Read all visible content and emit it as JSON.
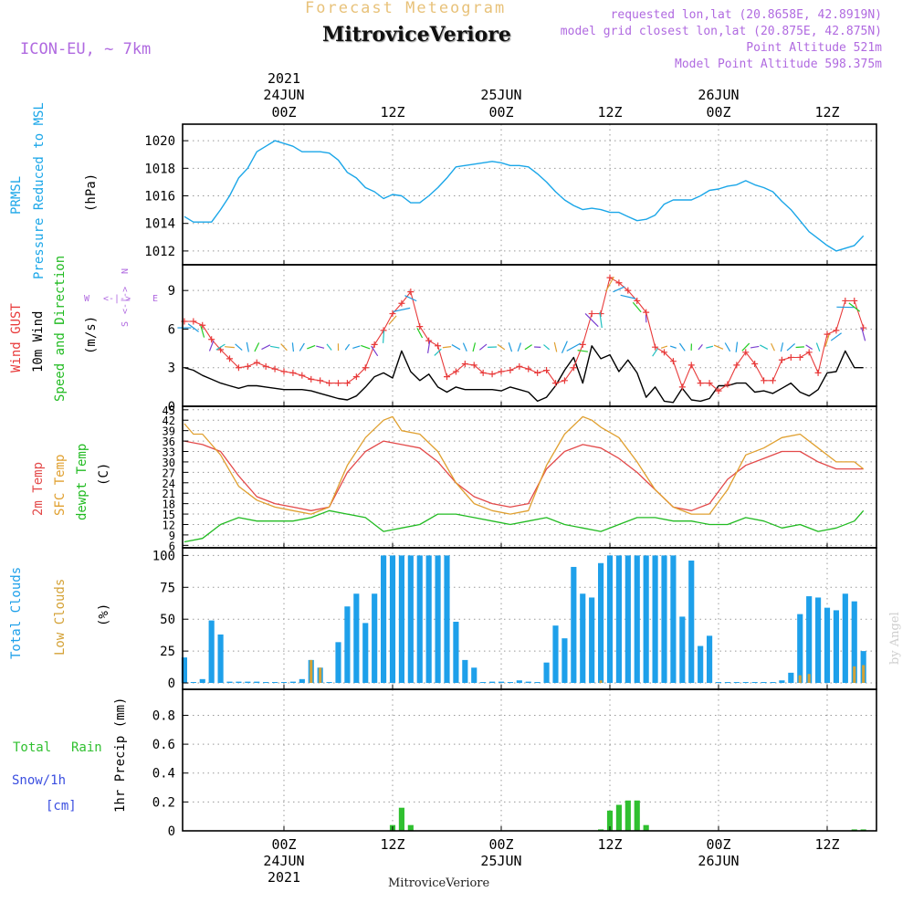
{
  "header": {
    "subtitle": "Forecast Meteogram",
    "station": "MitroviceVeriore",
    "model": "ICON-EU, ~ 7km",
    "requested": "requested lon,lat (20.8658E, 42.8919N)",
    "closest": "model grid closest lon,lat (20.875E, 42.875N)",
    "point_alt": "Point Altitude 521m",
    "model_alt": "Model Point Altitude 598.375m",
    "footer_station": "MitroviceVeriore",
    "watermark": "by Angel"
  },
  "colors": {
    "pressure": "#1aa6e8",
    "gust": "#e83a3a",
    "wind": "#000000",
    "temp2m": "#e34a4a",
    "sfctemp": "#e0a030",
    "dewpt": "#22bb22",
    "total_cloud": "#1ea0ea",
    "low_cloud": "#d4a237",
    "precip": "#30c030",
    "snow_label": "#3a4ee0",
    "purple": "#b06ae0"
  },
  "time_axis": {
    "top_year": "2021",
    "bottom_year": "2021",
    "ticks": [
      {
        "hour": 0,
        "label": "00Z",
        "date": "24JUN"
      },
      {
        "hour": 12,
        "label": "12Z",
        "date": ""
      },
      {
        "hour": 24,
        "label": "00Z",
        "date": "25JUN"
      },
      {
        "hour": 36,
        "label": "12Z",
        "date": ""
      },
      {
        "hour": 48,
        "label": "00Z",
        "date": "26JUN"
      },
      {
        "hour": 60,
        "label": "12Z",
        "date": ""
      }
    ]
  },
  "chart_data": [
    {
      "type": "line",
      "name": "pressure",
      "labels": [
        "PRMSL",
        "Pressure Reduced to MSL",
        "(hPa)"
      ],
      "ylim": [
        1011,
        1021.2
      ],
      "yticks": [
        1012,
        1014,
        1016,
        1018,
        1020
      ],
      "series": [
        {
          "name": "PRMSL",
          "x": [
            -11,
            -10,
            -9,
            -8,
            -7,
            -6,
            -5,
            -4,
            -3,
            -2,
            -1,
            0,
            1,
            2,
            3,
            4,
            5,
            6,
            7,
            8,
            9,
            10,
            11,
            12,
            13,
            14,
            15,
            16,
            17,
            18,
            19,
            20,
            21,
            22,
            23,
            24,
            25,
            26,
            27,
            28,
            29,
            30,
            31,
            32,
            33,
            34,
            35,
            36,
            37,
            38,
            39,
            40,
            41,
            42,
            43,
            44,
            45,
            46,
            47,
            48,
            49,
            50,
            51,
            52,
            53,
            54,
            55,
            56,
            57,
            58,
            59,
            60,
            61,
            62,
            63,
            64
          ],
          "y": [
            1014.5,
            1014.1,
            1014.1,
            1014.1,
            1015.0,
            1016.0,
            1017.3,
            1018.0,
            1019.2,
            1019.6,
            1020.0,
            1019.8,
            1019.6,
            1019.2,
            1019.2,
            1019.2,
            1019.1,
            1018.6,
            1017.7,
            1017.3,
            1016.6,
            1016.3,
            1015.8,
            1016.1,
            1016.0,
            1015.5,
            1015.5,
            1016.0,
            1016.6,
            1017.3,
            1018.1,
            1018.2,
            1018.3,
            1018.4,
            1018.5,
            1018.4,
            1018.2,
            1018.2,
            1018.1,
            1017.6,
            1017.0,
            1016.3,
            1015.7,
            1015.3,
            1015.0,
            1015.1,
            1015.0,
            1014.8,
            1014.8,
            1014.5,
            1014.2,
            1014.3,
            1014.6,
            1015.4,
            1015.7,
            1015.7,
            1015.7,
            1016.0,
            1016.4,
            1016.5,
            1016.7,
            1016.8,
            1017.1,
            1016.8,
            1016.6,
            1016.3,
            1015.6,
            1015.0,
            1014.2,
            1013.4,
            1012.9,
            1012.4,
            1012.0,
            1012.2,
            1012.4,
            1013.1
          ]
        }
      ]
    },
    {
      "type": "line",
      "name": "wind",
      "labels": [
        "Wind GUST",
        "10m Wind",
        "Speed and Direction",
        "(m/s)"
      ],
      "compass": {
        "n": "N",
        "s": "S",
        "w": "W",
        "e": "E",
        "arrows": "<-|->"
      },
      "ylim": [
        0,
        11
      ],
      "yticks": [
        0,
        3,
        6,
        9
      ],
      "gust": {
        "x": [
          -11,
          -10,
          -9,
          -8,
          -7,
          -6,
          -5,
          -4,
          -3,
          -2,
          -1,
          0,
          1,
          2,
          3,
          4,
          5,
          6,
          7,
          8,
          9,
          10,
          11,
          12,
          13,
          14,
          15,
          16,
          17,
          18,
          19,
          20,
          21,
          22,
          23,
          24,
          25,
          26,
          27,
          28,
          29,
          30,
          31,
          32,
          33,
          34,
          35,
          36,
          37,
          38,
          39,
          40,
          41,
          42,
          43,
          44,
          45,
          46,
          47,
          48,
          49,
          50,
          51,
          52,
          53,
          54,
          55,
          56,
          57,
          58,
          59,
          60,
          61,
          62,
          63,
          64
        ],
        "y": [
          6.6,
          6.6,
          6.3,
          5.2,
          4.4,
          3.7,
          3.0,
          3.1,
          3.4,
          3.1,
          2.9,
          2.7,
          2.6,
          2.4,
          2.1,
          2.0,
          1.8,
          1.8,
          1.8,
          2.3,
          3.0,
          4.8,
          5.9,
          7.2,
          8.0,
          8.9,
          6.2,
          5.1,
          4.7,
          2.3,
          2.7,
          3.3,
          3.2,
          2.6,
          2.5,
          2.7,
          2.8,
          3.1,
          2.9,
          2.6,
          2.8,
          1.8,
          2.0,
          3.0,
          4.8,
          7.2,
          7.2,
          10.0,
          9.6,
          9.0,
          8.2,
          7.3,
          4.6,
          4.2,
          3.5,
          1.5,
          3.2,
          1.8,
          1.8,
          1.2,
          1.7,
          3.2,
          4.2,
          3.3,
          2.0,
          2.0,
          3.6,
          3.8,
          3.8,
          4.2,
          2.6,
          5.6,
          5.9,
          8.2,
          8.2,
          6.1
        ]
      },
      "wind": {
        "x": [
          -11,
          -10,
          -9,
          -8,
          -7,
          -6,
          -5,
          -4,
          -3,
          -2,
          -1,
          0,
          1,
          2,
          3,
          4,
          5,
          6,
          7,
          8,
          9,
          10,
          11,
          12,
          13,
          14,
          15,
          16,
          17,
          18,
          19,
          20,
          21,
          22,
          23,
          24,
          25,
          26,
          27,
          28,
          29,
          30,
          31,
          32,
          33,
          34,
          35,
          36,
          37,
          38,
          39,
          40,
          41,
          42,
          43,
          44,
          45,
          46,
          47,
          48,
          49,
          50,
          51,
          52,
          53,
          54,
          55,
          56,
          57,
          58,
          59,
          60,
          61,
          62,
          63,
          64
        ],
        "y": [
          3.0,
          2.8,
          2.4,
          2.1,
          1.8,
          1.6,
          1.4,
          1.6,
          1.6,
          1.5,
          1.4,
          1.3,
          1.3,
          1.3,
          1.2,
          1.0,
          0.8,
          0.6,
          0.5,
          0.8,
          1.5,
          2.3,
          2.6,
          2.2,
          4.3,
          2.7,
          2.0,
          2.5,
          1.5,
          1.1,
          1.5,
          1.3,
          1.3,
          1.3,
          1.3,
          1.2,
          1.5,
          1.3,
          1.1,
          0.4,
          0.7,
          1.6,
          2.8,
          3.8,
          1.8,
          4.7,
          3.7,
          4.0,
          2.7,
          3.6,
          2.6,
          0.7,
          1.5,
          0.4,
          0.3,
          1.4,
          0.5,
          0.4,
          0.6,
          1.6,
          1.6,
          1.8,
          1.8,
          1.1,
          1.2,
          1.0,
          1.4,
          1.8,
          1.1,
          0.8,
          1.3,
          2.6,
          2.7,
          4.3,
          3.0,
          3.0
        ]
      }
    },
    {
      "type": "line",
      "name": "temperature",
      "labels": [
        "2m Temp",
        "SFC Temp",
        "dewpt Temp",
        "(C)"
      ],
      "ylim": [
        5.3,
        46
      ],
      "yticks": [
        6,
        9,
        12,
        15,
        18,
        21,
        24,
        27,
        30,
        33,
        36,
        39,
        42,
        45
      ],
      "series": [
        {
          "name": "2m Temp",
          "x": [
            -11,
            -9,
            -7,
            -5,
            -3,
            -1,
            1,
            3,
            5,
            7,
            9,
            11,
            13,
            15,
            17,
            19,
            21,
            23,
            25,
            27,
            29,
            31,
            33,
            35,
            37,
            39,
            41,
            43,
            45,
            47,
            49,
            51,
            53,
            55,
            57,
            59,
            61,
            63,
            64
          ],
          "y": [
            36,
            35,
            33,
            26,
            20,
            18,
            17,
            16,
            17,
            27,
            33,
            36,
            35,
            34,
            30,
            24,
            20,
            18,
            17,
            18,
            28,
            33,
            35,
            34,
            31,
            27,
            22,
            17,
            16,
            18,
            25,
            29,
            31,
            33,
            33,
            30,
            28,
            28,
            28
          ]
        },
        {
          "name": "SFC Temp",
          "x": [
            -11,
            -10,
            -9,
            -7,
            -5,
            -3,
            -1,
            1,
            3,
            5,
            7,
            9,
            11,
            12,
            13,
            15,
            17,
            19,
            21,
            23,
            25,
            27,
            29,
            31,
            33,
            34,
            35,
            37,
            39,
            41,
            43,
            45,
            47,
            49,
            51,
            53,
            55,
            57,
            59,
            61,
            63,
            64
          ],
          "y": [
            41,
            38,
            38,
            32,
            23,
            19,
            17,
            16,
            15,
            17,
            29,
            37,
            42,
            43,
            39,
            38,
            33,
            24,
            18,
            16,
            15,
            16,
            29,
            38,
            43,
            42,
            40,
            37,
            30,
            22,
            17,
            15,
            15,
            22,
            32,
            34,
            37,
            38,
            34,
            30,
            30,
            28
          ]
        },
        {
          "name": "dewpt Temp",
          "x": [
            -11,
            -9,
            -7,
            -5,
            -3,
            -1,
            1,
            3,
            5,
            7,
            9,
            11,
            13,
            15,
            17,
            19,
            21,
            23,
            25,
            27,
            29,
            31,
            33,
            35,
            37,
            39,
            41,
            43,
            45,
            47,
            49,
            51,
            53,
            55,
            57,
            59,
            61,
            63,
            64
          ],
          "y": [
            7,
            8,
            12,
            14,
            13,
            13,
            13,
            14,
            16,
            15,
            14,
            10,
            11,
            12,
            15,
            15,
            14,
            13,
            12,
            13,
            14,
            12,
            11,
            10,
            12,
            14,
            14,
            13,
            13,
            12,
            12,
            14,
            13,
            11,
            12,
            10,
            11,
            13,
            16
          ]
        }
      ]
    },
    {
      "type": "bar",
      "name": "clouds",
      "labels": [
        "Total Clouds",
        "Low Clouds",
        "(%)"
      ],
      "ylim": [
        -5,
        106
      ],
      "yticks": [
        0,
        25,
        50,
        75,
        100
      ],
      "x": [
        -11,
        -10,
        -9,
        -8,
        -7,
        -6,
        -5,
        -4,
        -3,
        -2,
        -1,
        0,
        1,
        2,
        3,
        4,
        5,
        6,
        7,
        8,
        9,
        10,
        11,
        12,
        13,
        14,
        15,
        16,
        17,
        18,
        19,
        20,
        21,
        22,
        23,
        24,
        25,
        26,
        27,
        28,
        29,
        30,
        31,
        32,
        33,
        34,
        35,
        36,
        37,
        38,
        39,
        40,
        41,
        42,
        43,
        44,
        45,
        46,
        47,
        48,
        49,
        50,
        51,
        52,
        53,
        54,
        55,
        56,
        57,
        58,
        59,
        60,
        61,
        62,
        63,
        64
      ],
      "series": [
        {
          "name": "Total Clouds",
          "values": [
            20,
            0,
            3,
            49,
            38,
            1,
            1,
            1,
            1,
            0,
            0,
            0,
            1,
            3,
            18,
            12,
            0,
            32,
            60,
            70,
            47,
            70,
            100,
            100,
            100,
            100,
            100,
            100,
            100,
            100,
            48,
            18,
            12,
            0,
            1,
            1,
            0,
            2,
            1,
            0,
            16,
            45,
            35,
            91,
            70,
            67,
            94,
            100,
            100,
            100,
            100,
            100,
            100,
            100,
            100,
            52,
            96,
            29,
            37,
            0,
            0,
            0,
            0,
            0,
            0,
            0,
            2,
            8,
            54,
            68,
            67,
            59,
            57,
            70,
            64,
            25
          ]
        },
        {
          "name": "Low Clouds",
          "values": [
            0,
            0,
            0,
            0,
            0,
            0,
            0,
            0,
            0,
            0,
            0,
            0,
            0,
            0,
            18,
            12,
            0,
            0,
            0,
            0,
            0,
            0,
            0,
            0,
            0,
            0,
            0,
            0,
            0,
            0,
            0,
            0,
            0,
            0,
            0,
            0,
            0,
            0,
            0,
            0,
            0,
            0,
            0,
            0,
            0,
            0,
            2,
            0,
            0,
            0,
            0,
            0,
            0,
            0,
            0,
            0,
            0,
            0,
            0,
            0,
            0,
            0,
            0,
            0,
            0,
            0,
            0,
            0,
            6,
            7,
            0,
            0,
            0,
            0,
            13,
            14
          ]
        }
      ]
    },
    {
      "type": "bar",
      "name": "precipitation",
      "labels": [
        "Total",
        "Rain",
        "Snow/1h",
        "[cm]",
        "1hr Precip (mm)"
      ],
      "ylim": [
        0,
        0.98
      ],
      "yticks": [
        0,
        0.2,
        0.4,
        0.6,
        0.8
      ],
      "ytick_labels": [
        "0",
        "0.2",
        "0.4",
        "0.6",
        "0.8"
      ],
      "x": [
        12,
        13,
        14,
        35,
        36,
        37,
        38,
        39,
        40,
        63,
        64
      ],
      "values": [
        0.04,
        0.16,
        0.04,
        0.01,
        0.14,
        0.18,
        0.21,
        0.21,
        0.04,
        0.01,
        0.01
      ]
    }
  ]
}
